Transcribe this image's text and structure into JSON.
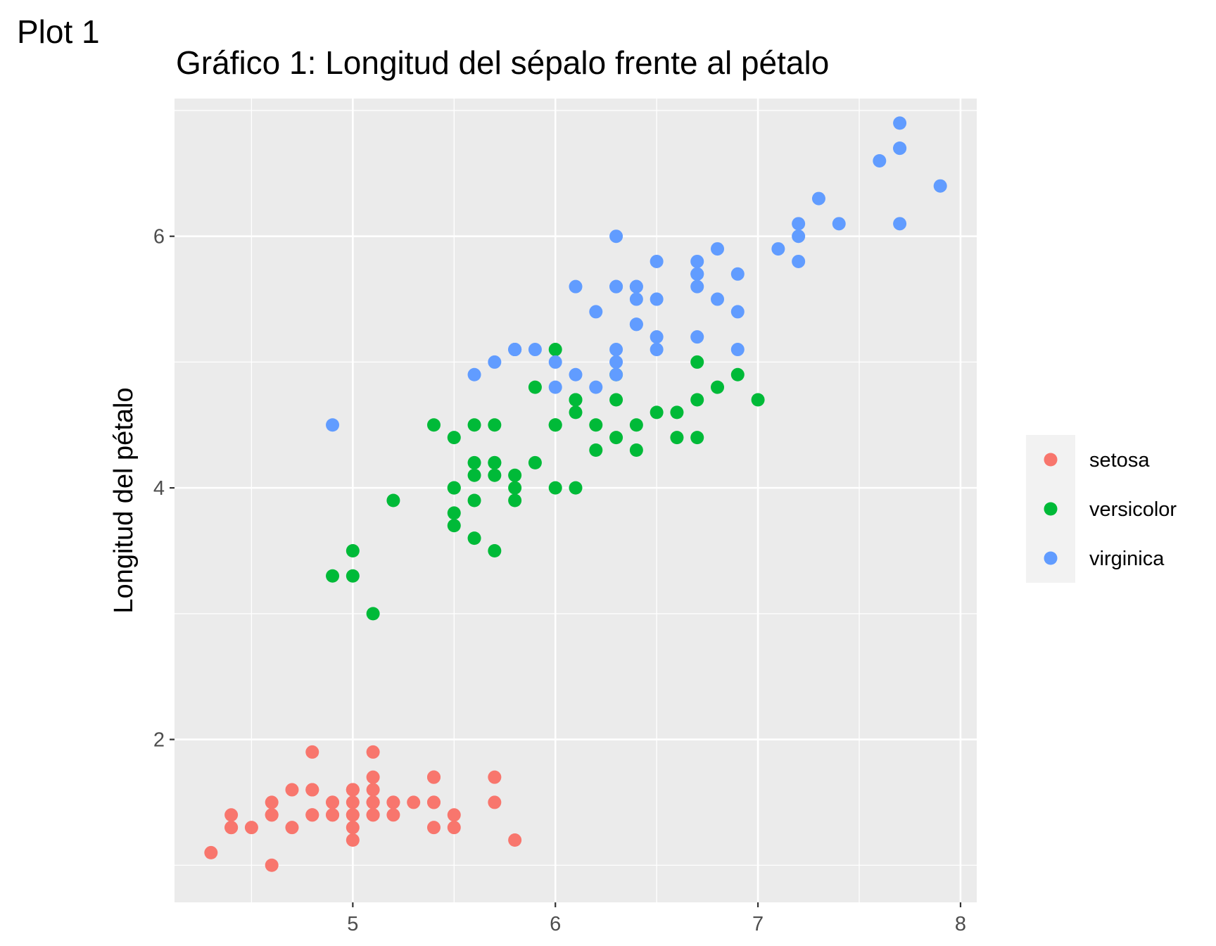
{
  "plot_tag": "Plot 1",
  "chart_data": {
    "type": "scatter",
    "title": "Gráfico 1: Longitud del sépalo frente al pétalo",
    "xlabel": "",
    "ylabel": "Longitud del pétalo",
    "xlim": [
      4.12,
      8.08
    ],
    "ylim": [
      0.705,
      7.095
    ],
    "x_ticks": [
      5,
      6,
      7,
      8
    ],
    "y_ticks": [
      2,
      4,
      6
    ],
    "grid": true,
    "panel_background": "#EBEBEB",
    "legend_position": "right",
    "series": [
      {
        "name": "setosa",
        "color": "#F8766D",
        "points": [
          [
            5.1,
            1.4
          ],
          [
            4.9,
            1.4
          ],
          [
            4.7,
            1.3
          ],
          [
            4.6,
            1.5
          ],
          [
            5.0,
            1.4
          ],
          [
            5.4,
            1.7
          ],
          [
            4.6,
            1.4
          ],
          [
            5.0,
            1.5
          ],
          [
            4.4,
            1.4
          ],
          [
            4.9,
            1.5
          ],
          [
            5.4,
            1.5
          ],
          [
            4.8,
            1.6
          ],
          [
            4.8,
            1.4
          ],
          [
            4.3,
            1.1
          ],
          [
            5.8,
            1.2
          ],
          [
            5.7,
            1.5
          ],
          [
            5.4,
            1.3
          ],
          [
            5.1,
            1.4
          ],
          [
            5.7,
            1.7
          ],
          [
            5.1,
            1.5
          ],
          [
            5.4,
            1.7
          ],
          [
            5.1,
            1.5
          ],
          [
            4.6,
            1.0
          ],
          [
            5.1,
            1.7
          ],
          [
            4.8,
            1.9
          ],
          [
            5.0,
            1.6
          ],
          [
            5.0,
            1.6
          ],
          [
            5.2,
            1.5
          ],
          [
            5.2,
            1.4
          ],
          [
            4.7,
            1.6
          ],
          [
            4.8,
            1.6
          ],
          [
            5.4,
            1.5
          ],
          [
            5.2,
            1.5
          ],
          [
            5.5,
            1.4
          ],
          [
            4.9,
            1.5
          ],
          [
            5.0,
            1.2
          ],
          [
            5.5,
            1.3
          ],
          [
            4.9,
            1.4
          ],
          [
            4.4,
            1.3
          ],
          [
            5.1,
            1.5
          ],
          [
            5.0,
            1.3
          ],
          [
            4.5,
            1.3
          ],
          [
            4.4,
            1.3
          ],
          [
            5.0,
            1.6
          ],
          [
            5.1,
            1.9
          ],
          [
            4.8,
            1.4
          ],
          [
            5.1,
            1.6
          ],
          [
            4.6,
            1.4
          ],
          [
            5.3,
            1.5
          ],
          [
            5.0,
            1.4
          ]
        ]
      },
      {
        "name": "versicolor",
        "color": "#00BA38",
        "points": [
          [
            7.0,
            4.7
          ],
          [
            6.4,
            4.5
          ],
          [
            6.9,
            4.9
          ],
          [
            5.5,
            4.0
          ],
          [
            6.5,
            4.6
          ],
          [
            5.7,
            4.5
          ],
          [
            6.3,
            4.7
          ],
          [
            4.9,
            3.3
          ],
          [
            6.6,
            4.6
          ],
          [
            5.2,
            3.9
          ],
          [
            5.0,
            3.5
          ],
          [
            5.9,
            4.2
          ],
          [
            6.0,
            4.0
          ],
          [
            6.1,
            4.7
          ],
          [
            5.6,
            3.6
          ],
          [
            6.7,
            4.4
          ],
          [
            5.6,
            4.5
          ],
          [
            5.8,
            4.1
          ],
          [
            6.2,
            4.5
          ],
          [
            5.6,
            3.9
          ],
          [
            5.9,
            4.8
          ],
          [
            6.1,
            4.0
          ],
          [
            6.3,
            4.9
          ],
          [
            6.1,
            4.7
          ],
          [
            6.4,
            4.3
          ],
          [
            6.6,
            4.4
          ],
          [
            6.8,
            4.8
          ],
          [
            6.7,
            5.0
          ],
          [
            6.0,
            4.5
          ],
          [
            5.7,
            3.5
          ],
          [
            5.5,
            3.8
          ],
          [
            5.5,
            3.7
          ],
          [
            5.8,
            3.9
          ],
          [
            6.0,
            5.1
          ],
          [
            5.4,
            4.5
          ],
          [
            6.0,
            4.5
          ],
          [
            6.7,
            4.7
          ],
          [
            6.3,
            4.4
          ],
          [
            5.6,
            4.1
          ],
          [
            5.5,
            4.0
          ],
          [
            5.5,
            4.4
          ],
          [
            6.1,
            4.6
          ],
          [
            5.8,
            4.0
          ],
          [
            5.0,
            3.3
          ],
          [
            5.6,
            4.2
          ],
          [
            5.7,
            4.2
          ],
          [
            5.7,
            4.2
          ],
          [
            6.2,
            4.3
          ],
          [
            5.1,
            3.0
          ],
          [
            5.7,
            4.1
          ]
        ]
      },
      {
        "name": "virginica",
        "color": "#619CFF",
        "points": [
          [
            6.3,
            6.0
          ],
          [
            5.8,
            5.1
          ],
          [
            7.1,
            5.9
          ],
          [
            6.3,
            5.6
          ],
          [
            6.5,
            5.8
          ],
          [
            7.6,
            6.6
          ],
          [
            4.9,
            4.5
          ],
          [
            7.3,
            6.3
          ],
          [
            6.7,
            5.8
          ],
          [
            7.2,
            6.1
          ],
          [
            6.5,
            5.1
          ],
          [
            6.4,
            5.3
          ],
          [
            6.8,
            5.5
          ],
          [
            5.7,
            5.0
          ],
          [
            5.8,
            5.1
          ],
          [
            6.4,
            5.3
          ],
          [
            6.5,
            5.5
          ],
          [
            7.7,
            6.7
          ],
          [
            7.7,
            6.9
          ],
          [
            6.0,
            5.0
          ],
          [
            6.9,
            5.7
          ],
          [
            5.6,
            4.9
          ],
          [
            7.7,
            6.7
          ],
          [
            6.3,
            4.9
          ],
          [
            6.7,
            5.7
          ],
          [
            7.2,
            6.0
          ],
          [
            6.2,
            4.8
          ],
          [
            6.1,
            4.9
          ],
          [
            6.4,
            5.6
          ],
          [
            7.2,
            5.8
          ],
          [
            7.4,
            6.1
          ],
          [
            7.9,
            6.4
          ],
          [
            6.4,
            5.6
          ],
          [
            6.3,
            5.1
          ],
          [
            6.1,
            5.6
          ],
          [
            7.7,
            6.1
          ],
          [
            6.3,
            5.6
          ],
          [
            6.4,
            5.5
          ],
          [
            6.0,
            4.8
          ],
          [
            6.9,
            5.4
          ],
          [
            6.7,
            5.6
          ],
          [
            6.9,
            5.1
          ],
          [
            5.8,
            5.1
          ],
          [
            6.8,
            5.9
          ],
          [
            6.7,
            5.7
          ],
          [
            6.7,
            5.2
          ],
          [
            6.3,
            5.0
          ],
          [
            6.5,
            5.2
          ],
          [
            6.2,
            5.4
          ],
          [
            5.9,
            5.1
          ]
        ]
      }
    ]
  }
}
